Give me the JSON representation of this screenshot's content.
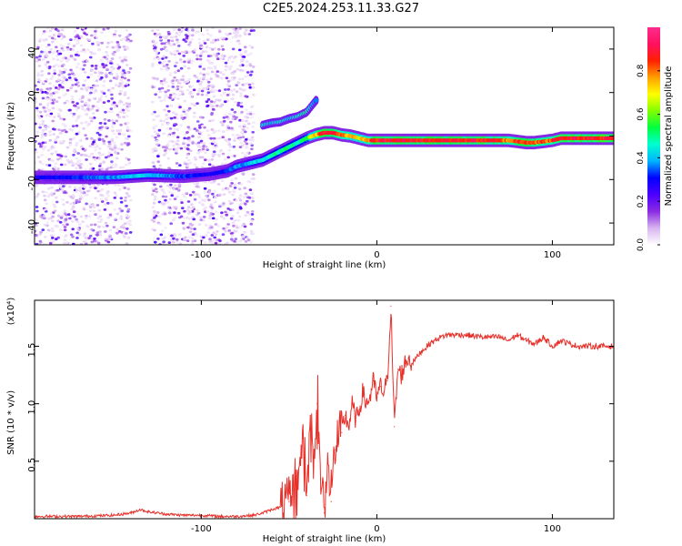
{
  "title": "C2E5.2024.253.11.33.G27",
  "chart_data": [
    {
      "type": "heatmap",
      "xlabel": "Height of straight line (km)",
      "ylabel": "Frequency (Hz)",
      "xlim": [
        -195,
        135
      ],
      "ylim": [
        -50,
        50
      ],
      "xticks": [
        -100,
        0,
        100
      ],
      "yticks": [
        -40,
        -20,
        0,
        20,
        40
      ],
      "colorbar": {
        "label": "Normalized spectral amplitude",
        "range": [
          0,
          1
        ],
        "ticks": [
          0.0,
          0.2,
          0.4,
          0.6,
          0.8
        ],
        "colors": [
          "#ffffff",
          "#d7b4f0",
          "#8a2be2",
          "#4b00ff",
          "#0000ff",
          "#00b4ff",
          "#00ffd0",
          "#00ff40",
          "#80ff00",
          "#ffff00",
          "#ffa000",
          "#ff2000",
          "#ff1060",
          "#ff2c8c"
        ]
      },
      "ridge": {
        "x": [
          -195,
          -170,
          -150,
          -130,
          -110,
          -95,
          -85,
          -80,
          -75,
          -70,
          -65,
          -60,
          -55,
          -50,
          -45,
          -40,
          -35,
          -30,
          -25,
          -20,
          -15,
          -10,
          -5,
          0,
          10,
          20,
          30,
          40,
          60,
          70,
          75,
          80,
          85,
          90,
          95,
          100,
          105,
          110,
          120,
          135
        ],
        "y": [
          -19,
          -19,
          -19,
          -18,
          -18.5,
          -17.5,
          -16,
          -14,
          -13,
          -12,
          -11,
          -9,
          -7,
          -5,
          -3,
          -1,
          0.5,
          1.5,
          1.5,
          0.5,
          0,
          -1,
          -2,
          -2,
          -2,
          -2,
          -2,
          -2,
          -2,
          -2,
          -2,
          -2.5,
          -3,
          -3,
          -2.5,
          -2,
          -1,
          -1,
          -1,
          -1
        ],
        "amp": [
          0.3,
          0.35,
          0.4,
          0.45,
          0.35,
          0.3,
          0.35,
          0.4,
          0.4,
          0.45,
          0.45,
          0.5,
          0.55,
          0.55,
          0.5,
          0.6,
          0.8,
          0.95,
          0.95,
          0.9,
          0.8,
          0.75,
          0.85,
          0.95,
          0.95,
          0.95,
          0.95,
          0.95,
          0.95,
          0.9,
          0.85,
          0.9,
          0.95,
          0.9,
          0.85,
          0.9,
          0.95,
          0.95,
          0.95,
          0.95
        ]
      },
      "side_feature": {
        "x": [
          -65,
          -60,
          -55,
          -50,
          -45,
          -40,
          -37,
          -34
        ],
        "y": [
          5,
          6,
          6.5,
          8,
          9,
          11,
          14,
          17
        ],
        "amp": [
          0.45,
          0.4,
          0.45,
          0.4,
          0.45,
          0.5,
          0.4,
          0.35
        ]
      },
      "noise_regions": [
        [
          -195,
          -140
        ],
        [
          -128,
          -70
        ]
      ]
    },
    {
      "type": "line",
      "xlabel": "Height of straight line (km)",
      "ylabel": "SNR (10 * v/v)",
      "y_multiplier": "(x10⁴)",
      "xlim": [
        -195,
        135
      ],
      "ylim": [
        0,
        1.9
      ],
      "xticks": [
        -100,
        0,
        100
      ],
      "yticks": [
        0.5,
        1.0,
        1.5
      ],
      "color": "#e8302a",
      "x": [
        -195,
        -170,
        -150,
        -140,
        -135,
        -130,
        -120,
        -110,
        -100,
        -90,
        -80,
        -70,
        -65,
        -60,
        -55,
        -50,
        -45,
        -42,
        -40,
        -38,
        -36,
        -34,
        -32,
        -30,
        -28,
        -26,
        -24,
        -22,
        -20,
        -18,
        -16,
        -14,
        -12,
        -10,
        -8,
        -6,
        -4,
        -2,
        0,
        2,
        4,
        6,
        8,
        10,
        12,
        14,
        16,
        18,
        20,
        25,
        30,
        35,
        40,
        50,
        60,
        70,
        75,
        80,
        85,
        90,
        95,
        100,
        105,
        110,
        115,
        120,
        125,
        130,
        135
      ],
      "y": [
        0.02,
        0.02,
        0.03,
        0.05,
        0.08,
        0.06,
        0.04,
        0.03,
        0.03,
        0.02,
        0.02,
        0.03,
        0.05,
        0.08,
        0.1,
        0.15,
        0.4,
        0.7,
        0.2,
        0.9,
        0.45,
        1.0,
        0.35,
        0.05,
        0.5,
        0.15,
        0.6,
        0.7,
        0.75,
        0.9,
        0.8,
        1.0,
        0.85,
        0.95,
        1.1,
        1.0,
        1.05,
        1.2,
        1.05,
        1.15,
        1.1,
        1.2,
        1.85,
        0.8,
        1.3,
        1.25,
        1.35,
        1.4,
        1.35,
        1.45,
        1.52,
        1.57,
        1.6,
        1.6,
        1.58,
        1.58,
        1.55,
        1.6,
        1.55,
        1.52,
        1.58,
        1.5,
        1.55,
        1.52,
        1.5,
        1.5,
        1.5,
        1.5,
        1.5
      ]
    }
  ]
}
